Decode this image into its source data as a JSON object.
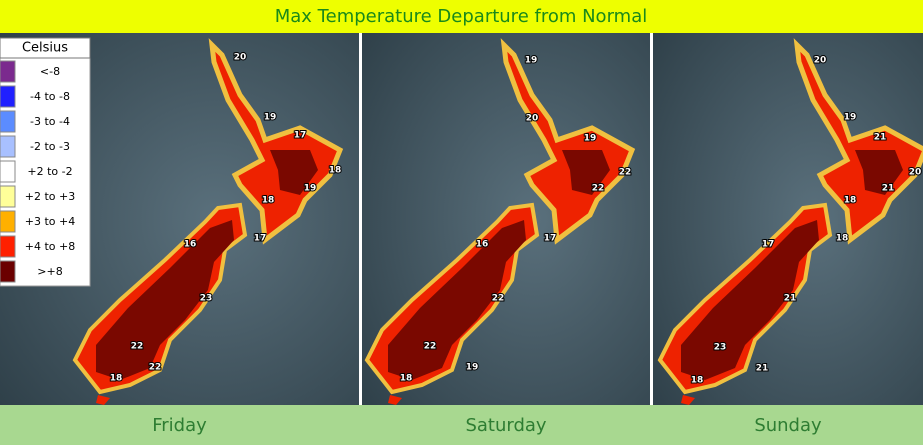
{
  "title": "Max Temperature Departure from Normal",
  "legend": {
    "header": "Celsius",
    "items": [
      "<-8",
      "-4 to -8",
      "-3 to -4",
      "-2 to -3",
      "+2 to -2",
      "+2 to +3",
      "+3 to +4",
      "+4 to +8",
      ">+8"
    ]
  },
  "panels": [
    {
      "day": "Friday",
      "labels": [
        "20",
        "19",
        "17",
        "18",
        "19",
        "18",
        "17",
        "16",
        "23",
        "22",
        "22",
        "18"
      ]
    },
    {
      "day": "Saturday",
      "labels": [
        "19",
        "20",
        "19",
        "22",
        "22",
        "17",
        "16",
        "22",
        "22",
        "19",
        "18"
      ]
    },
    {
      "day": "Sunday",
      "labels": [
        "20",
        "19",
        "21",
        "20",
        "21",
        "18",
        "18",
        "17",
        "21",
        "23",
        "21",
        "18"
      ]
    }
  ]
}
